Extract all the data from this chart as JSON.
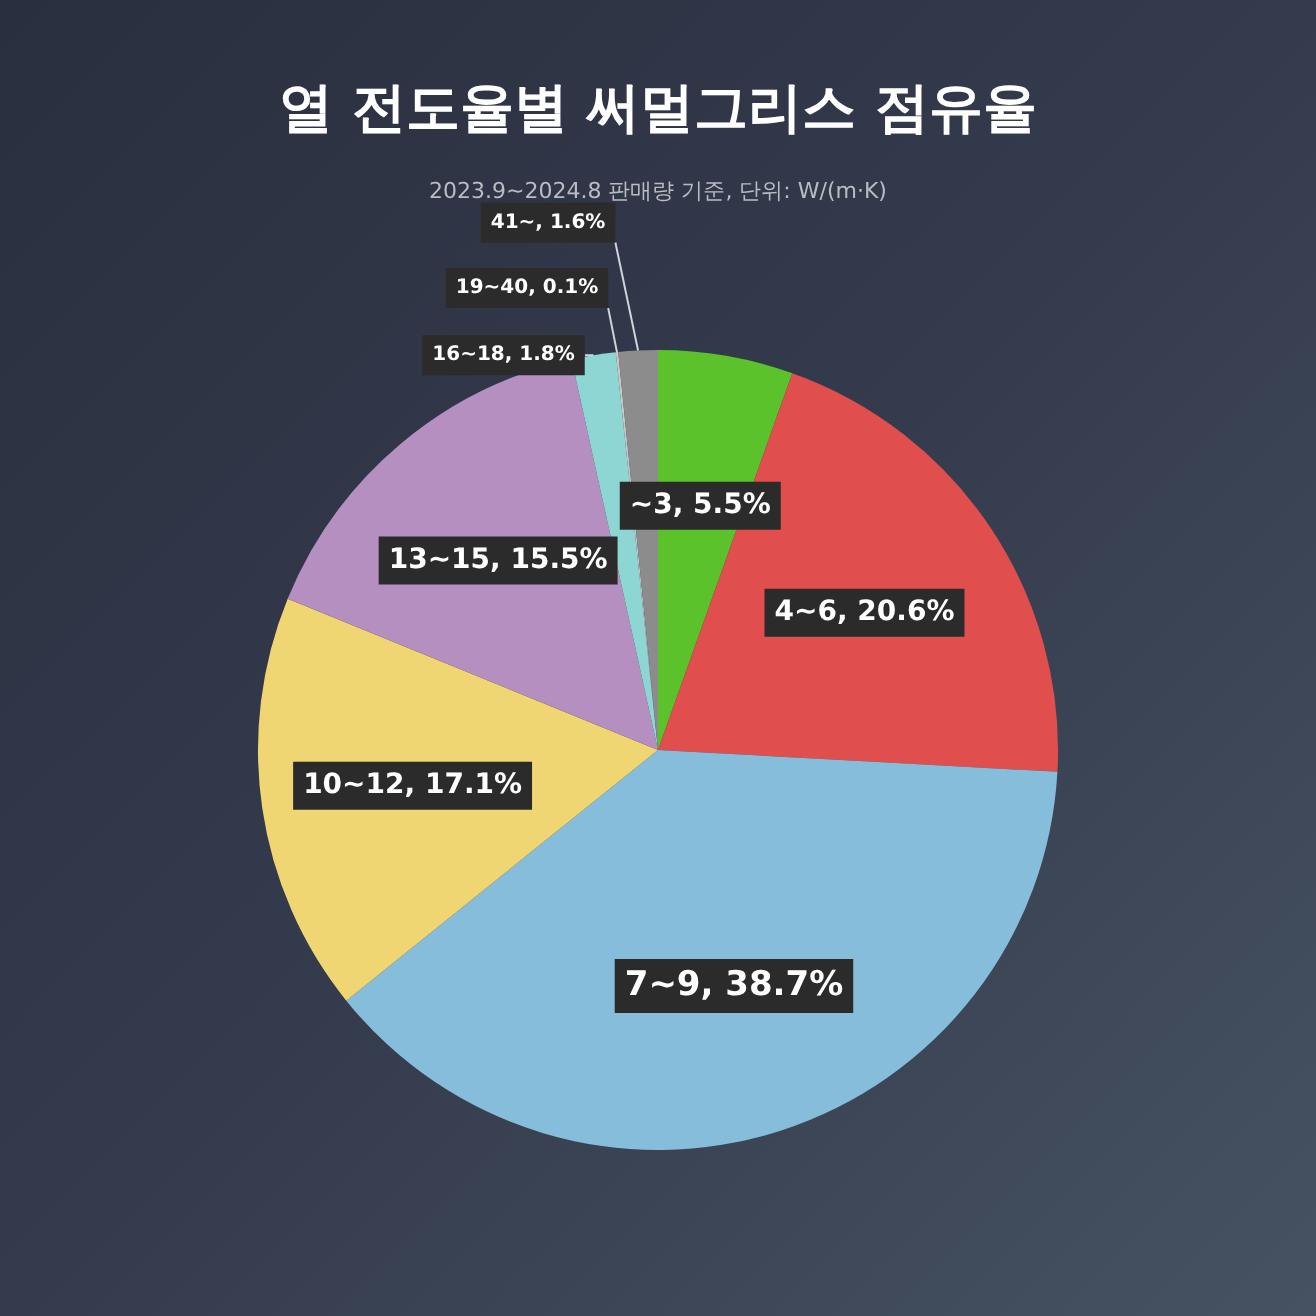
{
  "chart_data": {
    "type": "pie",
    "title": "열 전도율별 써멀그리스 점유율",
    "subtitle": "2023.9~2024.8 판매량 기준, 단위: W/(m·K)",
    "categories": [
      "~3",
      "4~6",
      "7~9",
      "10~12",
      "13~15",
      "16~18",
      "19~40",
      "41~"
    ],
    "values": [
      5.5,
      20.6,
      38.7,
      17.1,
      15.5,
      1.8,
      0.1,
      1.6
    ],
    "colors": [
      "#5cc22c",
      "#e04e4e",
      "#86bddb",
      "#f0d672",
      "#b48fbf",
      "#8ed6d4",
      "#c8c8c8",
      "#8c8c8c"
    ],
    "value_labels": [
      ", 5.5%",
      ", 20.6%",
      ", 38.7%",
      ", 17.1%",
      ", 15.5%",
      ", 1.8%",
      ", 0.1%",
      ", 1.6%"
    ],
    "legend": false
  }
}
